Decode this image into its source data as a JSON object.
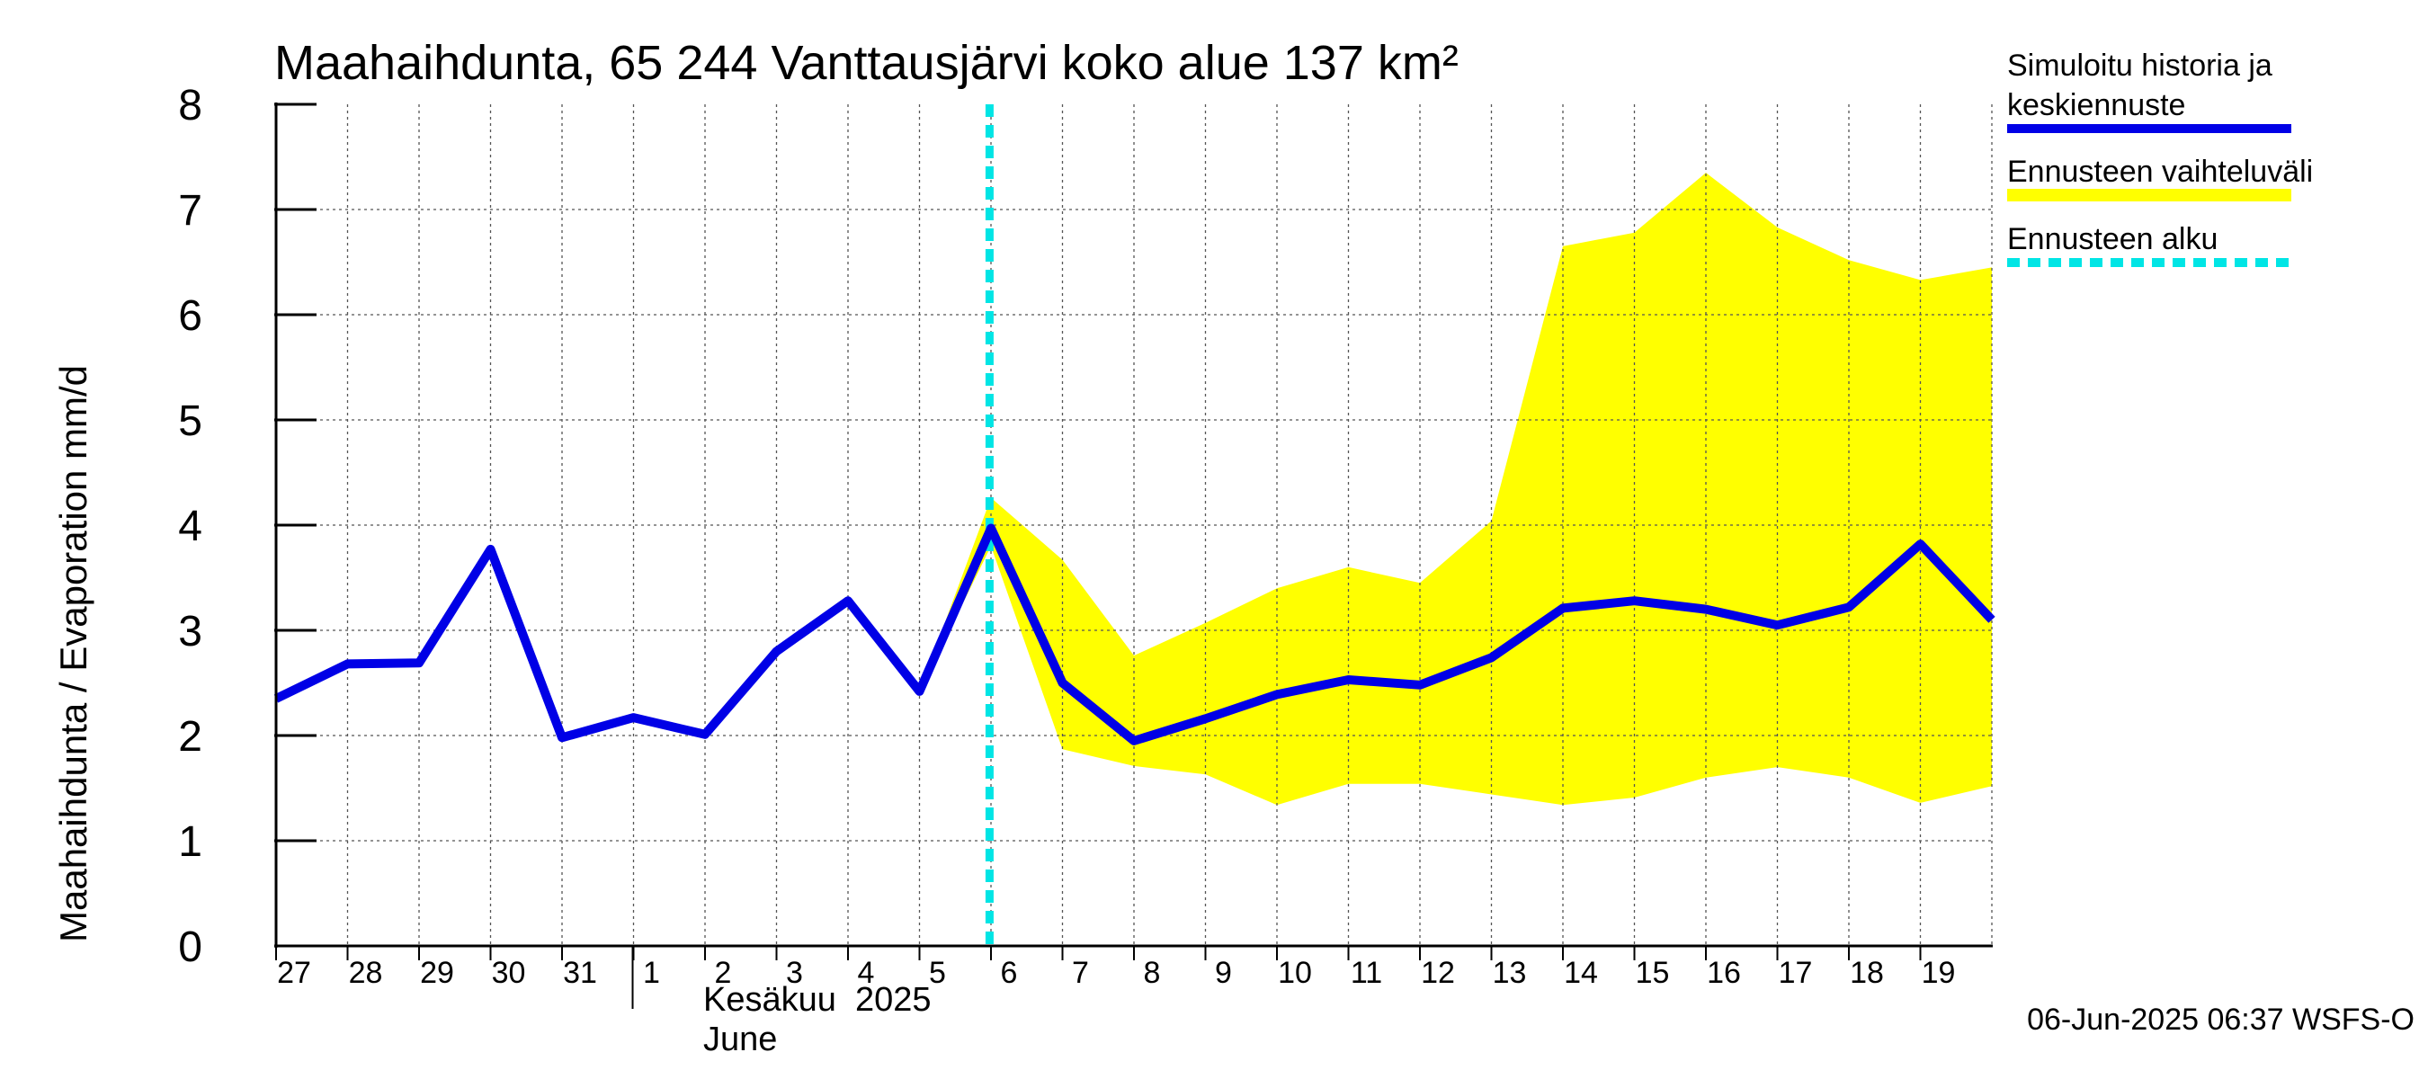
{
  "chart_data": {
    "type": "area",
    "title": "Maahaihdunta, 65 244 Vanttausjärvi koko alue 137 km²",
    "ylabel": "Maahaihdunta / Evaporation   mm/d",
    "ylim": [
      0,
      8
    ],
    "yticks": [
      "0",
      "1",
      "2",
      "3",
      "4",
      "5",
      "6",
      "7",
      "8"
    ],
    "x": [
      "2025-05-27",
      "2025-05-28",
      "2025-05-29",
      "2025-05-30",
      "2025-05-31",
      "2025-06-01",
      "2025-06-02",
      "2025-06-03",
      "2025-06-04",
      "2025-06-05",
      "2025-06-06",
      "2025-06-07",
      "2025-06-08",
      "2025-06-09",
      "2025-06-10",
      "2025-06-11",
      "2025-06-12",
      "2025-06-13",
      "2025-06-14",
      "2025-06-15",
      "2025-06-16",
      "2025-06-17",
      "2025-06-18",
      "2025-06-19",
      "2025-06-20"
    ],
    "xtick_labels": [
      "27",
      "28",
      "29",
      "30",
      "31",
      "1",
      "2",
      "3",
      "4",
      "5",
      "6",
      "7",
      "8",
      "9",
      "10",
      "11",
      "12",
      "13",
      "14",
      "15",
      "16",
      "17",
      "18",
      "19"
    ],
    "month_label_fi": "Kesäkuu  2025",
    "month_label_en": "June",
    "grid": true,
    "legend_position": "right",
    "forecast_start": "2025-06-06",
    "series": [
      {
        "name": "Simuloitu historia ja keskiennuste",
        "color": "#0000e6",
        "values": [
          2.35,
          2.68,
          2.69,
          3.77,
          1.98,
          2.17,
          2.01,
          2.8,
          3.28,
          2.42,
          3.97,
          2.5,
          1.95,
          2.16,
          2.39,
          2.53,
          2.48,
          2.74,
          3.21,
          3.28,
          3.2,
          3.05,
          3.22,
          3.82,
          3.1
        ]
      }
    ],
    "band": {
      "name": "Ennusteen vaihteluväli",
      "color": "#ffff00",
      "lower": [
        2.35,
        2.68,
        2.69,
        3.77,
        1.98,
        2.17,
        2.01,
        2.8,
        3.28,
        2.42,
        3.8,
        1.87,
        1.71,
        1.63,
        1.34,
        1.54,
        1.54,
        1.44,
        1.34,
        1.41,
        1.6,
        1.7,
        1.6,
        1.36,
        1.52
      ],
      "upper": [
        2.35,
        2.68,
        2.69,
        3.77,
        1.98,
        2.17,
        2.01,
        2.8,
        3.28,
        2.42,
        4.26,
        3.67,
        2.76,
        3.07,
        3.4,
        3.6,
        3.45,
        4.04,
        6.65,
        6.78,
        7.35,
        6.83,
        6.52,
        6.33,
        6.45
      ]
    },
    "forecast_line": {
      "name": "Ennusteen alku",
      "color": "#00e5e5"
    }
  },
  "legend": {
    "sim_line1": "Simuloitu historia ja",
    "sim_line2": "keskiennuste",
    "band": "Ennusteen vaihteluväli",
    "start": "Ennusteen alku"
  },
  "timestamp": "06-Jun-2025 06:37 WSFS-O"
}
